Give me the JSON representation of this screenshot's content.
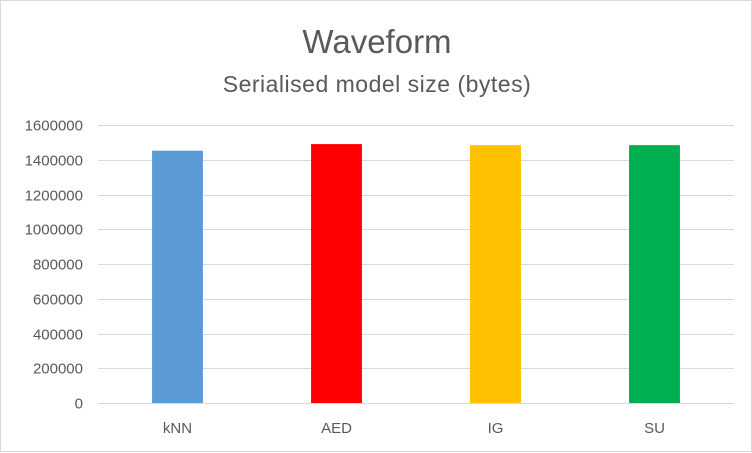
{
  "chart_data": {
    "type": "bar",
    "title": "Waveform",
    "subtitle": "Serialised model size (bytes)",
    "xlabel": "",
    "ylabel": "",
    "categories": [
      "kNN",
      "AED",
      "IG",
      "SU"
    ],
    "values": [
      1452000,
      1490000,
      1484000,
      1484000
    ],
    "colors": [
      "#5b9bd5",
      "#ff0000",
      "#ffc000",
      "#00b050"
    ],
    "ylim": [
      0,
      1600000
    ],
    "yticks": [
      "0",
      "200000",
      "400000",
      "600000",
      "800000",
      "1000000",
      "1200000",
      "1400000",
      "1600000"
    ],
    "grid": true,
    "legend": "none"
  }
}
